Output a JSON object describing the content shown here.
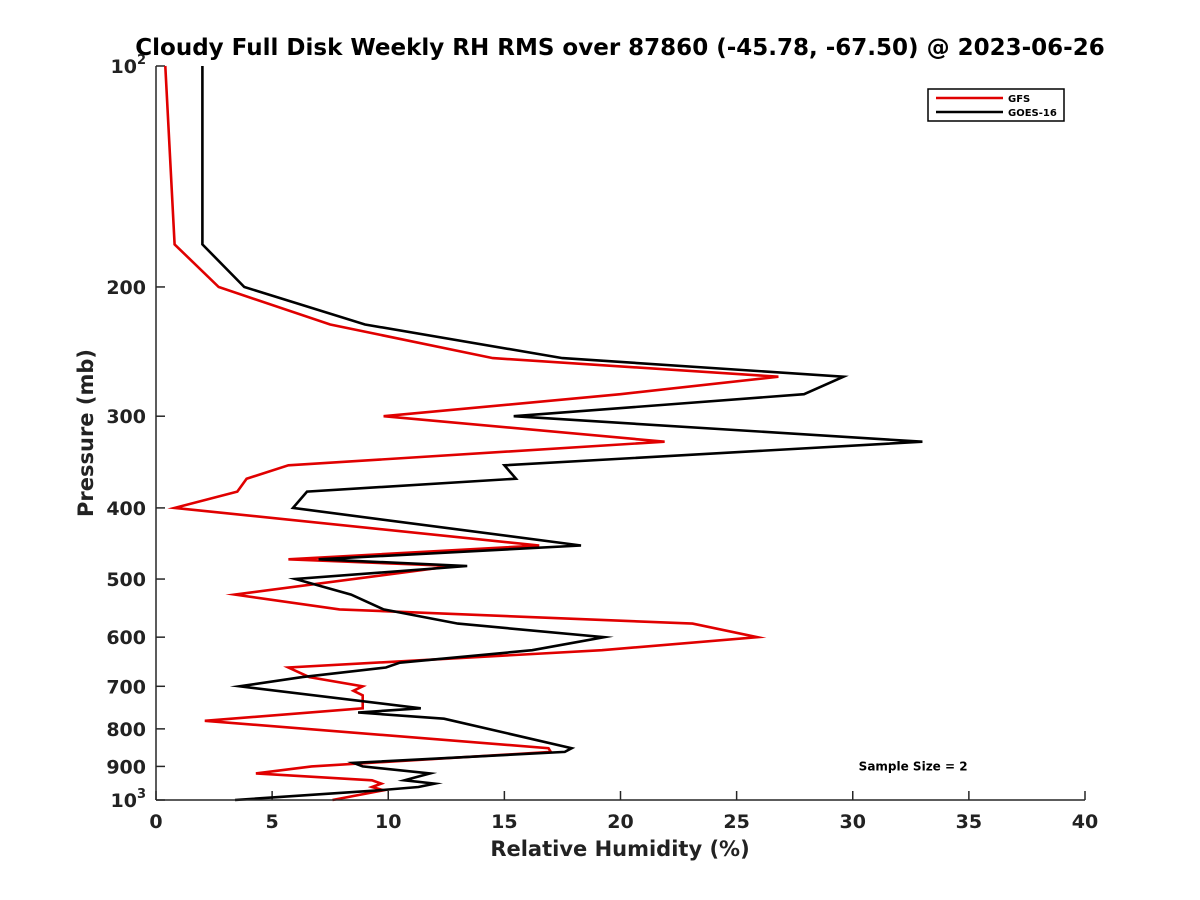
{
  "chart_data": {
    "type": "line",
    "title": "Cloudy Full Disk Weekly RH RMS over 87860 (-45.78, -67.50) @ 2023-06-26",
    "xlabel": "Relative Humidity (%)",
    "ylabel": "Pressure (mb)",
    "xlim": [
      0,
      40
    ],
    "ylim": [
      100,
      1000
    ],
    "y_scale": "log",
    "y_reversed": true,
    "grid": false,
    "legend_position": "top-right",
    "x_ticks": [
      {
        "value": 0,
        "label": "0"
      },
      {
        "value": 5,
        "label": "5"
      },
      {
        "value": 10,
        "label": "10"
      },
      {
        "value": 15,
        "label": "15"
      },
      {
        "value": 20,
        "label": "20"
      },
      {
        "value": 25,
        "label": "25"
      },
      {
        "value": 30,
        "label": "30"
      },
      {
        "value": 35,
        "label": "35"
      },
      {
        "value": 40,
        "label": "40"
      }
    ],
    "y_ticks": [
      {
        "value": 100,
        "base": "10",
        "exp": "2"
      },
      {
        "value": 200,
        "label": "200"
      },
      {
        "value": 300,
        "label": "300"
      },
      {
        "value": 400,
        "label": "400"
      },
      {
        "value": 500,
        "label": "500"
      },
      {
        "value": 600,
        "label": "600"
      },
      {
        "value": 700,
        "label": "700"
      },
      {
        "value": 800,
        "label": "800"
      },
      {
        "value": 900,
        "label": "900"
      },
      {
        "value": 1000,
        "base": "10",
        "exp": "3"
      }
    ],
    "series": [
      {
        "name": "GFS",
        "color": "#e00000",
        "points": [
          [
            0.4,
            100
          ],
          [
            0.8,
            175
          ],
          [
            2.7,
            200
          ],
          [
            7.5,
            225
          ],
          [
            14.5,
            250
          ],
          [
            26.8,
            265
          ],
          [
            20.0,
            280
          ],
          [
            9.8,
            300
          ],
          [
            21.9,
            325
          ],
          [
            5.7,
            350
          ],
          [
            3.9,
            365
          ],
          [
            3.5,
            380
          ],
          [
            0.8,
            400
          ],
          [
            16.5,
            450
          ],
          [
            5.7,
            470
          ],
          [
            12.8,
            480
          ],
          [
            3.4,
            525
          ],
          [
            7.9,
            550
          ],
          [
            23.1,
            575
          ],
          [
            25.9,
            600
          ],
          [
            19.2,
            625
          ],
          [
            5.7,
            660
          ],
          [
            6.6,
            680
          ],
          [
            8.9,
            700
          ],
          [
            8.5,
            710
          ],
          [
            8.9,
            720
          ],
          [
            8.9,
            750
          ],
          [
            2.1,
            780
          ],
          [
            16.9,
            850
          ],
          [
            17.0,
            860
          ],
          [
            6.7,
            900
          ],
          [
            4.3,
            920
          ],
          [
            9.3,
            940
          ],
          [
            9.7,
            950
          ],
          [
            9.3,
            960
          ],
          [
            9.8,
            970
          ],
          [
            7.6,
            1000
          ]
        ]
      },
      {
        "name": "GOES-16",
        "color": "#000000",
        "points": [
          [
            2.0,
            100
          ],
          [
            2.0,
            175
          ],
          [
            3.8,
            200
          ],
          [
            9.0,
            225
          ],
          [
            17.5,
            250
          ],
          [
            29.6,
            265
          ],
          [
            27.9,
            280
          ],
          [
            15.4,
            300
          ],
          [
            33.0,
            325
          ],
          [
            15.0,
            350
          ],
          [
            15.5,
            365
          ],
          [
            6.5,
            380
          ],
          [
            5.9,
            400
          ],
          [
            18.3,
            450
          ],
          [
            7.0,
            470
          ],
          [
            13.4,
            480
          ],
          [
            6.0,
            500
          ],
          [
            8.4,
            525
          ],
          [
            9.8,
            550
          ],
          [
            13.0,
            575
          ],
          [
            19.3,
            600
          ],
          [
            16.2,
            625
          ],
          [
            10.5,
            650
          ],
          [
            9.9,
            660
          ],
          [
            6.3,
            680
          ],
          [
            3.6,
            700
          ],
          [
            11.4,
            750
          ],
          [
            8.7,
            760
          ],
          [
            12.4,
            775
          ],
          [
            17.9,
            850
          ],
          [
            17.6,
            860
          ],
          [
            8.5,
            890
          ],
          [
            8.9,
            900
          ],
          [
            11.8,
            920
          ],
          [
            10.7,
            940
          ],
          [
            12.0,
            950
          ],
          [
            11.3,
            960
          ],
          [
            9.6,
            970
          ],
          [
            3.4,
            1000
          ]
        ]
      }
    ],
    "annotations": [
      {
        "text": "Sample Size = 2",
        "x": 32.6,
        "y": 900
      }
    ]
  }
}
